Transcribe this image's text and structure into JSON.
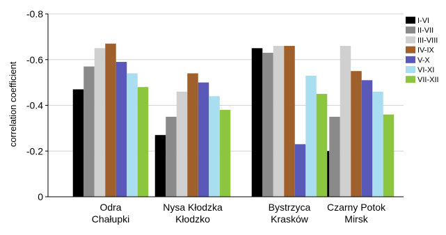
{
  "chart_data": {
    "type": "bar",
    "ylabel": "correlation coefficient",
    "xlabel": "",
    "y_inverted": true,
    "ylim": [
      0,
      -0.8
    ],
    "y_ticks": [
      0,
      -0.2,
      -0.4,
      -0.6,
      -0.8
    ],
    "y_tick_labels": [
      "0",
      "-0.2",
      "-0.4",
      "-0.6",
      "-0.8"
    ],
    "grid": "horizontal",
    "legend_position": "right",
    "categories": [
      [
        "Odra",
        "Chałupki"
      ],
      [
        "Nysa Kłodzka",
        "Kłodzko"
      ],
      [
        "Bystrzyca",
        "Krasków"
      ],
      [
        "Czarny Potok",
        "Mirsk"
      ]
    ],
    "series": [
      {
        "name": "I-VI",
        "color": "#000000",
        "values": [
          -0.47,
          -0.27,
          -0.65,
          -0.2
        ]
      },
      {
        "name": "II-VII",
        "color": "#8a8a8a",
        "values": [
          -0.57,
          -0.35,
          -0.63,
          -0.35
        ]
      },
      {
        "name": "III-VIII",
        "color": "#d0d0d0",
        "values": [
          -0.65,
          -0.46,
          -0.66,
          -0.66
        ]
      },
      {
        "name": "IV-IX",
        "color": "#a0602c",
        "values": [
          -0.67,
          -0.54,
          -0.66,
          -0.55
        ]
      },
      {
        "name": "V-X",
        "color": "#5a58b8",
        "values": [
          -0.59,
          -0.5,
          -0.23,
          -0.51
        ]
      },
      {
        "name": "VI-XI",
        "color": "#a8def0",
        "values": [
          -0.54,
          -0.44,
          -0.53,
          -0.46
        ]
      },
      {
        "name": "VII-XII",
        "color": "#8cc63f",
        "values": [
          -0.48,
          -0.38,
          -0.45,
          -0.36
        ]
      }
    ]
  }
}
